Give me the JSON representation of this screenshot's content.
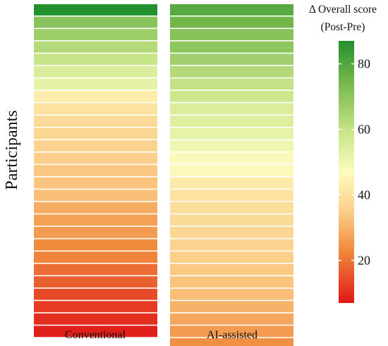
{
  "chart_data": {
    "type": "heatmap",
    "ylabel": "Participants",
    "colorbar": {
      "title_line1": "Δ Overall score",
      "title_line2": "(Post-Pre)",
      "range": [
        7,
        87
      ],
      "ticks": [
        20,
        40,
        60,
        80
      ],
      "colors": {
        "low": "#e01818",
        "low_mid": "#f08a3c",
        "mid_low": "#fccf8a",
        "mid": "#fdfcbf",
        "mid_high": "#c9e58a",
        "high_mid": "#72b64a",
        "high": "#23902e"
      }
    },
    "columns": [
      {
        "label": "Conventional",
        "values": [
          87,
          71,
          67,
          63,
          59,
          55,
          52,
          43,
          40,
          38,
          37,
          36,
          35,
          34,
          33,
          32,
          29,
          27,
          26,
          23,
          22,
          19,
          17,
          14,
          12,
          10,
          8
        ]
      },
      {
        "label": "AI-assisted",
        "values": [
          79,
          75,
          71,
          70,
          66,
          63,
          60,
          58,
          55,
          54,
          52,
          50,
          48,
          46,
          42,
          40,
          39,
          38,
          37,
          36,
          35,
          34,
          33,
          32,
          30,
          28,
          26,
          24
        ]
      }
    ]
  }
}
